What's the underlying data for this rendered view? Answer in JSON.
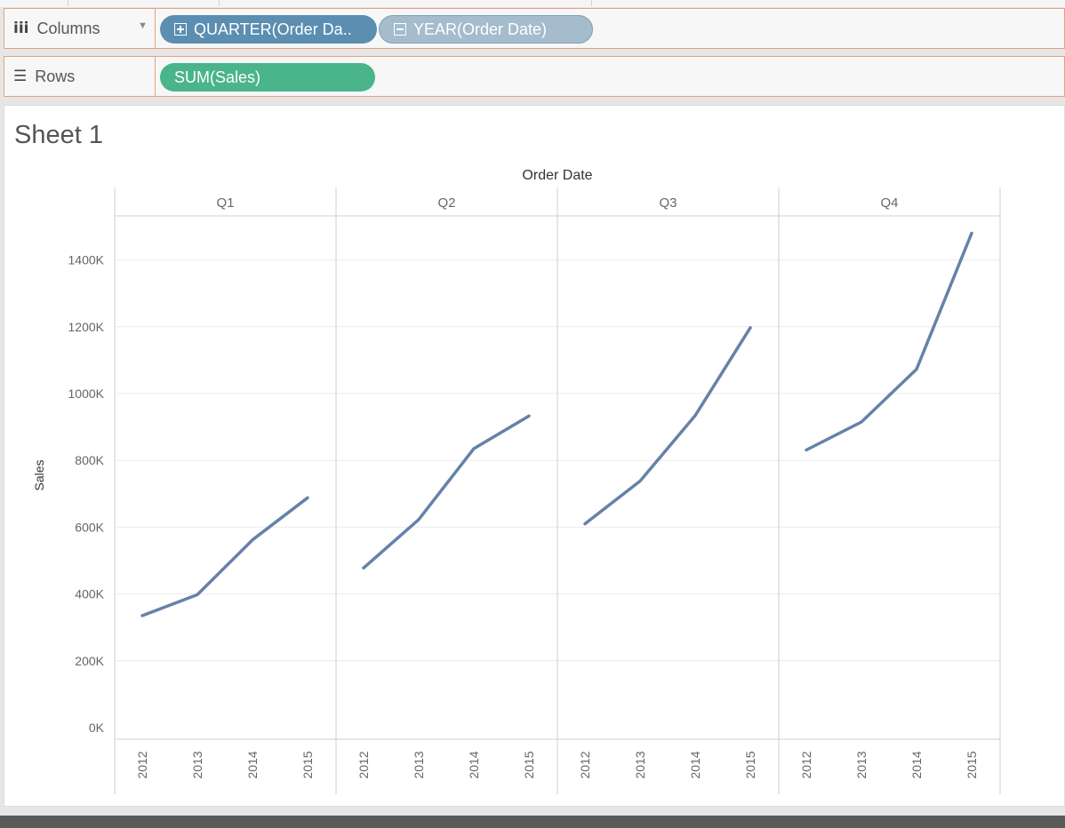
{
  "shelves": {
    "columns": {
      "label": "Columns",
      "pills": [
        {
          "label": "QUARTER(Order Da..",
          "icon": "plus-square-icon"
        },
        {
          "label": "YEAR(Order Date)",
          "icon": "minus-square-icon"
        }
      ]
    },
    "rows": {
      "label": "Rows",
      "pills": [
        {
          "label": "SUM(Sales)"
        }
      ]
    }
  },
  "sheet": {
    "title": "Sheet 1"
  },
  "chart_data": {
    "type": "line",
    "column_header": "Order Date",
    "ylabel": "Sales",
    "ylim": [
      0,
      1550000
    ],
    "yticks": [
      0,
      200000,
      400000,
      600000,
      800000,
      1000000,
      1200000,
      1400000
    ],
    "ytick_labels": [
      "0K",
      "200K",
      "400K",
      "600K",
      "800K",
      "1000K",
      "1200K",
      "1400K"
    ],
    "grid": true,
    "line_color": "#6582a8",
    "panels": [
      {
        "quarter": "Q1",
        "x": [
          "2012",
          "2013",
          "2014",
          "2015"
        ],
        "values": [
          335000,
          398000,
          562000,
          688000
        ]
      },
      {
        "quarter": "Q2",
        "x": [
          "2012",
          "2013",
          "2014",
          "2015"
        ],
        "values": [
          478000,
          623000,
          835000,
          933000
        ]
      },
      {
        "quarter": "Q3",
        "x": [
          "2012",
          "2013",
          "2014",
          "2015"
        ],
        "values": [
          610000,
          738000,
          934000,
          1197000
        ]
      },
      {
        "quarter": "Q4",
        "x": [
          "2012",
          "2013",
          "2014",
          "2015"
        ],
        "values": [
          831000,
          915000,
          1073000,
          1480000
        ]
      }
    ]
  }
}
